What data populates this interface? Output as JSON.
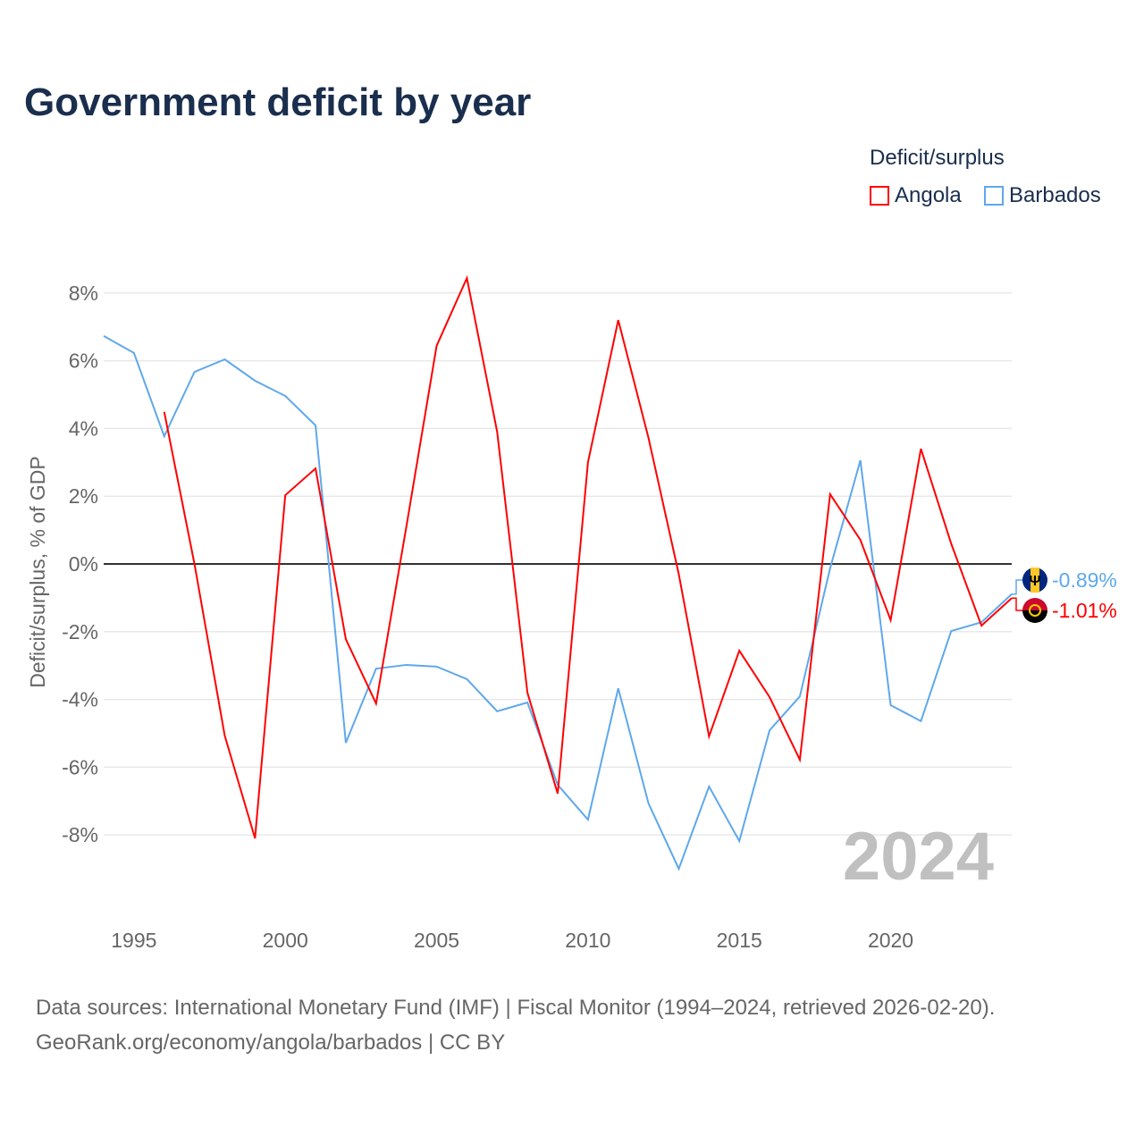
{
  "chart_data": {
    "type": "line",
    "title": "Government deficit by year",
    "ylabel": "Deficit/surplus, % of GDP",
    "xlabel": "",
    "ylim": [
      -10,
      9
    ],
    "xlim": [
      1994,
      2024
    ],
    "yticks": [
      -8,
      -6,
      -4,
      -2,
      0,
      2,
      4,
      6,
      8
    ],
    "ytick_labels": [
      "-8%",
      "-6%",
      "-4%",
      "-2%",
      "0%",
      "2%",
      "4%",
      "6%",
      "8%"
    ],
    "xticks": [
      1995,
      2000,
      2005,
      2010,
      2015,
      2020
    ],
    "xtick_labels": [
      "1995",
      "2000",
      "2005",
      "2010",
      "2015",
      "2020"
    ],
    "legend_title": "Deficit/surplus",
    "legend_position": "top-right",
    "year_watermark": "2024",
    "series": [
      {
        "name": "Angola",
        "color": "#ff0000",
        "end_label": "-1.01%",
        "x": [
          1996,
          1997,
          1998,
          1999,
          2000,
          2001,
          2002,
          2003,
          2004,
          2005,
          2006,
          2007,
          2008,
          2009,
          2010,
          2011,
          2012,
          2013,
          2014,
          2015,
          2016,
          2017,
          2018,
          2019,
          2020,
          2021,
          2022,
          2023,
          2024
        ],
        "values": [
          4.49,
          0.0,
          -5.07,
          -8.1,
          2.03,
          2.82,
          -2.22,
          -4.12,
          1.1,
          6.44,
          8.44,
          3.9,
          -3.8,
          -6.78,
          3.0,
          7.2,
          3.72,
          -0.3,
          -5.09,
          -2.56,
          -3.93,
          -5.78,
          2.06,
          0.71,
          -1.66,
          3.4,
          0.6,
          -1.82,
          -1.01
        ]
      },
      {
        "name": "Barbados",
        "color": "#5ea8ec",
        "end_label": "-0.89%",
        "x": [
          1994,
          1995,
          1996,
          1997,
          1998,
          1999,
          2000,
          2001,
          2002,
          2003,
          2004,
          2005,
          2006,
          2007,
          2008,
          2009,
          2010,
          2011,
          2012,
          2013,
          2014,
          2015,
          2016,
          2017,
          2018,
          2019,
          2020,
          2021,
          2022,
          2023,
          2024
        ],
        "values": [
          6.73,
          6.23,
          3.77,
          5.67,
          6.04,
          5.41,
          4.96,
          4.09,
          -5.28,
          -3.09,
          -2.98,
          -3.03,
          -3.4,
          -4.35,
          -4.09,
          -6.52,
          -7.55,
          -3.67,
          -7.07,
          -9.0,
          -6.57,
          -8.18,
          -4.91,
          -3.91,
          -0.13,
          3.06,
          -4.17,
          -4.64,
          -1.98,
          -1.72,
          -0.89
        ]
      }
    ]
  },
  "source": {
    "line1": "Data sources: International Monetary Fund (IMF) | Fiscal Monitor (1994–2024, retrieved 2026-02-20).",
    "line2": "GeoRank.org/economy/angola/barbados | CC BY"
  }
}
